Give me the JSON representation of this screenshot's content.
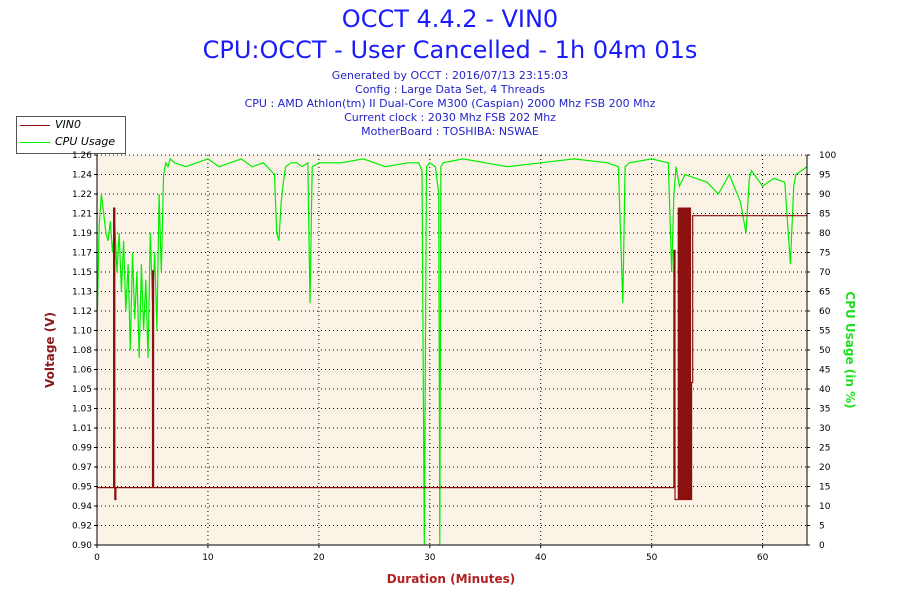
{
  "header": {
    "title": "OCCT 4.4.2 - VIN0",
    "subtitle": "CPU:OCCT - User Cancelled - 1h 04m 01s",
    "info_lines": [
      "Generated by OCCT : 2016/07/13 23:15:03",
      "Config : Large Data Set, 4 Threads",
      "CPU : AMD Athlon(tm) II Dual-Core M300 (Caspian) 2000 Mhz FSB 200 Mhz",
      "Current clock : 2030 Mhz FSB 202 Mhz",
      "MotherBoard : TOSHIBA: NSWAE"
    ]
  },
  "colors": {
    "vin0": "#8b1010",
    "cpu_usage": "#00ee00",
    "plot_background": "#fbf3e6",
    "left_axis": "#8b1a1a",
    "right_axis": "#22dd22",
    "x_axis_title": "#b22222"
  },
  "chart_data": {
    "type": "line",
    "title": "OCCT 4.4.2 - VIN0",
    "subtitle": "CPU:OCCT - User Cancelled - 1h 04m 01s",
    "xlabel": "Duration (Minutes)",
    "ylabel": "Voltage (V)",
    "y2label": "CPU Usage (in %)",
    "xlim": [
      0,
      64
    ],
    "ylim": [
      0.9,
      1.26
    ],
    "y2lim": [
      0,
      100
    ],
    "grid": true,
    "legend": "top-left",
    "x_ticks": [
      "0",
      "10",
      "20",
      "30",
      "40",
      "50",
      "60"
    ],
    "y_ticks": [
      "0.90",
      "0.92",
      "0.94",
      "0.95",
      "0.97",
      "0.99",
      "1.01",
      "1.03",
      "1.05",
      "1.06",
      "1.08",
      "1.10",
      "1.12",
      "1.13",
      "1.15",
      "1.17",
      "1.19",
      "1.21",
      "1.22",
      "1.24",
      "1.26"
    ],
    "y2_ticks": [
      "0",
      "5",
      "10",
      "15",
      "20",
      "25",
      "30",
      "35",
      "40",
      "45",
      "50",
      "55",
      "60",
      "65",
      "70",
      "75",
      "80",
      "85",
      "90",
      "95",
      "100"
    ],
    "series": [
      {
        "name": "VIN0",
        "axis": "left",
        "x": [
          0,
          1.5,
          1.5,
          1.6,
          1.6,
          1.7,
          1.7,
          5.0,
          5.0,
          5.1,
          5.1,
          52.0,
          52.0,
          52.1,
          52.1,
          52.4,
          52.4,
          52.5,
          52.5,
          52.6,
          52.6,
          52.7,
          52.7,
          52.8,
          52.8,
          52.9,
          52.9,
          53.0,
          53.0,
          53.1,
          53.1,
          53.2,
          53.2,
          53.3,
          53.3,
          53.4,
          53.4,
          53.5,
          53.5,
          53.6,
          53.6,
          53.7,
          53.7,
          64.0
        ],
        "values": [
          0.953,
          0.953,
          1.211,
          1.211,
          0.942,
          0.942,
          0.953,
          0.953,
          1.153,
          1.153,
          0.953,
          0.953,
          1.172,
          1.172,
          0.942,
          0.942,
          1.211,
          1.211,
          0.942,
          0.942,
          1.211,
          1.211,
          0.942,
          0.942,
          1.211,
          1.211,
          0.942,
          0.942,
          1.211,
          1.211,
          0.942,
          0.942,
          1.211,
          1.211,
          0.942,
          0.942,
          1.211,
          1.211,
          0.942,
          0.942,
          1.05,
          1.05,
          1.204,
          1.204
        ]
      },
      {
        "name": "CPU Usage",
        "axis": "right",
        "x": [
          0,
          0.2,
          0.4,
          0.6,
          0.8,
          1.0,
          1.2,
          1.4,
          1.6,
          1.8,
          2.0,
          2.2,
          2.4,
          2.6,
          2.8,
          3.0,
          3.2,
          3.4,
          3.6,
          3.8,
          4.0,
          4.2,
          4.4,
          4.6,
          4.8,
          5.0,
          5.2,
          5.4,
          5.6,
          5.8,
          6.0,
          6.2,
          6.4,
          6.6,
          7.0,
          8.0,
          9.0,
          10.0,
          11.0,
          12.0,
          13.0,
          14.0,
          15.0,
          16.0,
          16.2,
          16.4,
          16.6,
          16.8,
          17.0,
          17.5,
          18.0,
          18.5,
          19.0,
          19.2,
          19.4,
          20.0,
          22.0,
          24.0,
          26.0,
          28.0,
          29.0,
          29.3,
          29.5,
          29.7,
          30.0,
          30.5,
          30.8,
          30.9,
          31.0,
          31.2,
          33.0,
          35.0,
          37.0,
          40.0,
          43.0,
          46.0,
          47.0,
          47.4,
          47.6,
          48.0,
          50.0,
          51.5,
          51.8,
          52.0,
          52.2,
          52.5,
          53.0,
          54.0,
          55.0,
          56.0,
          57.0,
          58.0,
          58.5,
          58.8,
          59.0,
          60.0,
          61.0,
          62.0,
          62.5,
          62.8,
          63.0,
          63.5,
          64.0
        ],
        "values": [
          55,
          82,
          90,
          85,
          80,
          78,
          83,
          75,
          82,
          70,
          80,
          65,
          78,
          60,
          72,
          50,
          75,
          58,
          70,
          48,
          72,
          55,
          68,
          48,
          80,
          62,
          75,
          55,
          90,
          70,
          95,
          98,
          97,
          99,
          98,
          97,
          98,
          99,
          97,
          98,
          99,
          97,
          98,
          95,
          80,
          78,
          88,
          93,
          97,
          98,
          98,
          97,
          98,
          62,
          97,
          98,
          98,
          99,
          97,
          98,
          98,
          96,
          0,
          97,
          98,
          97,
          90,
          0,
          97,
          98,
          99,
          98,
          97,
          98,
          99,
          98,
          97,
          62,
          97,
          98,
          99,
          98,
          70,
          90,
          97,
          92,
          95,
          94,
          93,
          90,
          95,
          88,
          80,
          94,
          96,
          92,
          94,
          93,
          72,
          92,
          95,
          96,
          97
        ]
      }
    ]
  },
  "legend": {
    "entries": [
      "VIN0",
      "CPU Usage"
    ]
  }
}
